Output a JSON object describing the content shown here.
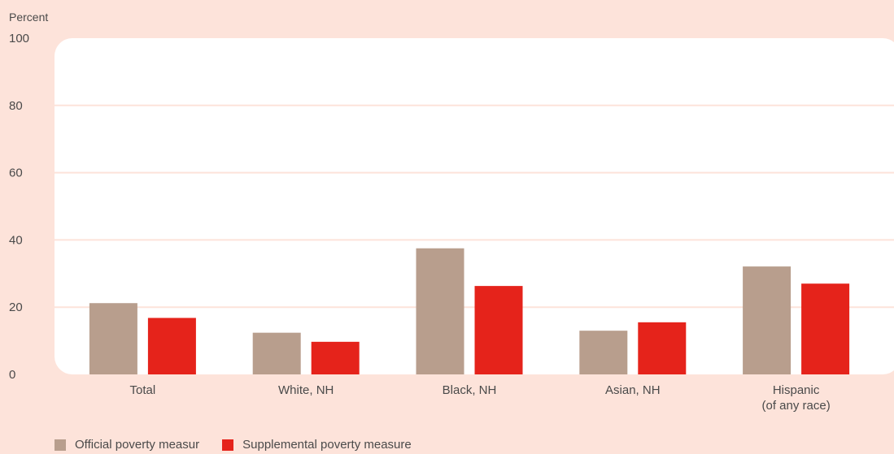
{
  "chart_data": {
    "type": "bar",
    "title": "",
    "ylabel": "Percent",
    "xlabel": "",
    "ylim": [
      0,
      100
    ],
    "yticks": [
      0,
      20,
      40,
      60,
      80,
      100
    ],
    "grid": true,
    "legend_position": "bottom-left",
    "categories": [
      "Total",
      "White, NH",
      "Black, NH",
      "Asian, NH",
      "Hispanic\n(of any race)"
    ],
    "series": [
      {
        "name": "Official poverty measur",
        "color": "#b89e8d",
        "values": [
          21.2,
          12.4,
          37.5,
          13.0,
          32.1
        ]
      },
      {
        "name": "Supplemental poverty measure",
        "color": "#e5231b",
        "values": [
          16.8,
          9.7,
          26.3,
          15.5,
          27.0
        ]
      }
    ]
  },
  "colors": {
    "background": "#fde3da",
    "plot_area": "#ffffff",
    "gridline": "#fde3da"
  }
}
